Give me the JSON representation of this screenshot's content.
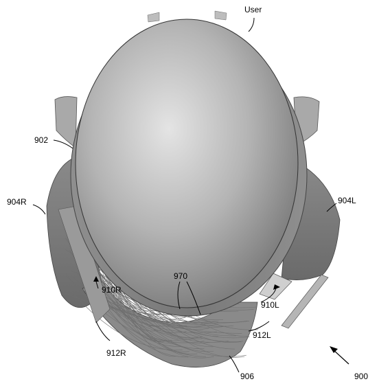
{
  "labels": {
    "user": "User",
    "head_outline": "902",
    "right_ear_cup": "904R",
    "left_ear_cup": "904L",
    "right_mount": "910R",
    "left_mount": "910L",
    "right_strap": "912R",
    "left_strap": "912L",
    "cable_bundle": "970",
    "chin_band": "906",
    "assembly": "900"
  },
  "colors": {
    "shell_light": "#d8d8d8",
    "shell_mid": "#a3a3a3",
    "shell_dark": "#6d6d6d",
    "outline": "#3a3a3a",
    "wire": "#7a7a7a"
  }
}
